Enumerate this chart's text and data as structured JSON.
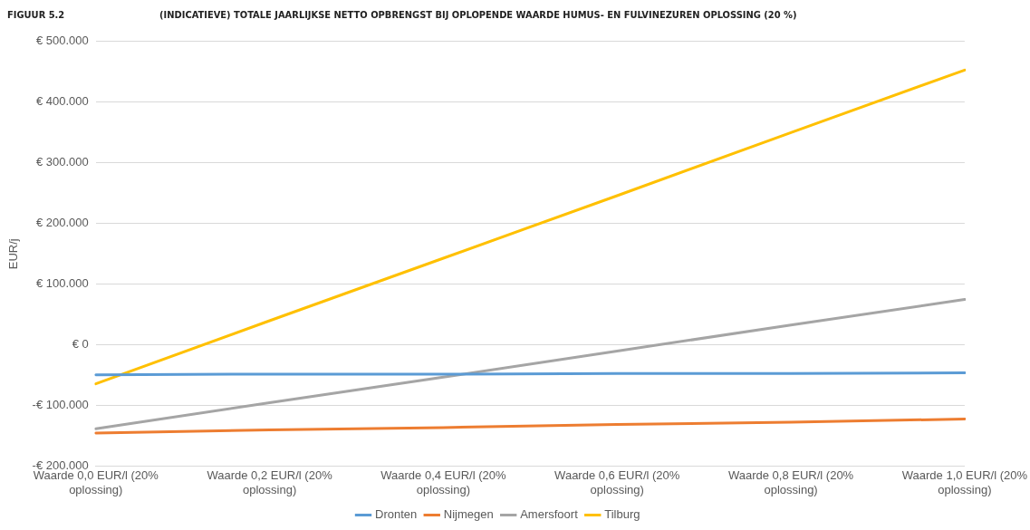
{
  "chart_data": {
    "type": "line",
    "title": "(INDICATIEVE) TOTALE JAARLIJKSE NETTO OPBRENGST BIJ OPLOPENDE WAARDE HUMUS- EN FULVINEZUREN OPLOSSING (20 %)",
    "annotations": [
      "FIGUUR 5.2"
    ],
    "ylabel": "EUR/j",
    "categories": [
      "Waarde 0,0 EUR/l (20% oplossing)",
      "Waarde 0,2 EUR/l (20% oplossing)",
      "Waarde 0,4 EUR/l (20% oplossing)",
      "Waarde 0,6 EUR/l (20% oplossing)",
      "Waarde 0,8 EUR/l (20% oplossing)",
      "Waarde 1,0 EUR/l (20% oplossing)"
    ],
    "series": [
      {
        "name": "Dronten",
        "color": "#5b9bd5",
        "values": [
          -49000,
          -48000,
          -48000,
          -47000,
          -47000,
          -46000
        ]
      },
      {
        "name": "Nijmegen",
        "color": "#ed7d31",
        "values": [
          -145000,
          -140000,
          -136000,
          -131000,
          -127000,
          -122000
        ]
      },
      {
        "name": "Amersfoort",
        "color": "#a5a5a5",
        "values": [
          -138000,
          -95000,
          -53000,
          -10000,
          33000,
          75000
        ]
      },
      {
        "name": "Tilburg",
        "color": "#ffc000",
        "values": [
          -64000,
          40000,
          143000,
          246000,
          350000,
          453000
        ]
      }
    ],
    "ylim": [
      -200000,
      500000
    ],
    "yticks": [
      {
        "value": -200000,
        "label": "-€ 200.000"
      },
      {
        "value": -100000,
        "label": "-€ 100.000"
      },
      {
        "value": 0,
        "label": "€ 0"
      },
      {
        "value": 100000,
        "label": "€ 100.000"
      },
      {
        "value": 200000,
        "label": "€ 200.000"
      },
      {
        "value": 300000,
        "label": "€ 300.000"
      },
      {
        "value": 400000,
        "label": "€ 400.000"
      },
      {
        "value": 500000,
        "label": "€ 500.000"
      }
    ],
    "grid": "y",
    "legend": "bottom",
    "marker": "none",
    "line_style": "solid"
  }
}
